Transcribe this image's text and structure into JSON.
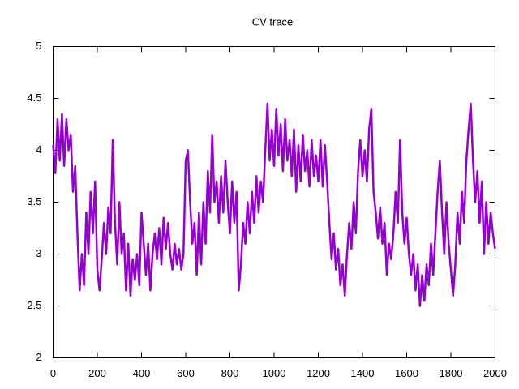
{
  "chart_data": {
    "type": "line",
    "title": "CV trace",
    "x": [
      0,
      10,
      20,
      30,
      40,
      50,
      60,
      70,
      80,
      90,
      100,
      110,
      120,
      130,
      140,
      150,
      160,
      170,
      180,
      190,
      200,
      210,
      220,
      230,
      240,
      250,
      260,
      270,
      280,
      290,
      300,
      310,
      320,
      330,
      340,
      350,
      360,
      370,
      380,
      390,
      400,
      410,
      420,
      430,
      440,
      450,
      460,
      470,
      480,
      490,
      500,
      510,
      520,
      530,
      540,
      550,
      560,
      570,
      580,
      590,
      600,
      610,
      620,
      630,
      640,
      650,
      660,
      670,
      680,
      690,
      700,
      710,
      720,
      730,
      740,
      750,
      760,
      770,
      780,
      790,
      800,
      810,
      820,
      830,
      840,
      850,
      860,
      870,
      880,
      890,
      900,
      910,
      920,
      930,
      940,
      950,
      960,
      970,
      980,
      990,
      1000,
      1010,
      1020,
      1030,
      1040,
      1050,
      1060,
      1070,
      1080,
      1090,
      1100,
      1110,
      1120,
      1130,
      1140,
      1150,
      1160,
      1170,
      1180,
      1190,
      1200,
      1210,
      1220,
      1230,
      1240,
      1250,
      1260,
      1270,
      1280,
      1290,
      1300,
      1310,
      1320,
      1330,
      1340,
      1350,
      1360,
      1370,
      1380,
      1390,
      1400,
      1410,
      1420,
      1430,
      1440,
      1450,
      1460,
      1470,
      1480,
      1490,
      1500,
      1510,
      1520,
      1530,
      1540,
      1550,
      1560,
      1570,
      1580,
      1590,
      1600,
      1610,
      1620,
      1630,
      1640,
      1650,
      1660,
      1670,
      1680,
      1690,
      1700,
      1710,
      1720,
      1730,
      1740,
      1750,
      1760,
      1770,
      1780,
      1790,
      1800,
      1810,
      1820,
      1830,
      1840,
      1850,
      1860,
      1870,
      1880,
      1890,
      1900,
      1910,
      1920,
      1930,
      1940,
      1950,
      1960,
      1970,
      1980,
      1990,
      2000
    ],
    "series": [
      {
        "color": "#9400d3",
        "values": [
          4.05,
          3.78,
          4.3,
          3.9,
          4.35,
          3.85,
          4.3,
          4.0,
          4.15,
          3.6,
          3.85,
          3.2,
          2.65,
          3.0,
          2.7,
          3.4,
          3.0,
          3.6,
          3.2,
          3.7,
          2.85,
          2.65,
          2.95,
          3.3,
          3.0,
          3.45,
          3.2,
          4.1,
          3.3,
          2.9,
          3.5,
          3.0,
          3.2,
          2.65,
          3.1,
          2.6,
          2.95,
          2.75,
          3.0,
          2.7,
          3.4,
          3.1,
          2.8,
          3.1,
          2.65,
          3.0,
          3.2,
          2.95,
          3.25,
          2.9,
          3.35,
          3.05,
          3.3,
          3.0,
          2.85,
          3.1,
          2.9,
          3.05,
          2.85,
          3.0,
          3.9,
          4.0,
          3.5,
          3.1,
          3.3,
          2.8,
          3.4,
          2.9,
          3.5,
          3.1,
          3.8,
          3.4,
          4.15,
          3.5,
          3.7,
          3.3,
          3.75,
          3.4,
          3.9,
          3.5,
          3.2,
          3.7,
          3.3,
          3.6,
          2.65,
          2.9,
          3.3,
          3.1,
          3.5,
          3.2,
          3.6,
          3.3,
          3.75,
          3.4,
          3.7,
          3.5,
          4.0,
          4.45,
          3.9,
          4.2,
          3.85,
          4.4,
          3.95,
          4.25,
          3.8,
          4.3,
          3.9,
          4.1,
          3.75,
          4.2,
          3.6,
          4.05,
          3.7,
          4.15,
          3.8,
          4.0,
          3.65,
          4.1,
          3.75,
          3.95,
          3.7,
          4.1,
          3.65,
          4.05,
          3.7,
          3.3,
          2.95,
          3.2,
          2.85,
          3.05,
          2.7,
          2.9,
          2.6,
          3.0,
          3.3,
          3.05,
          3.5,
          3.2,
          3.8,
          4.1,
          3.75,
          4.0,
          3.7,
          4.2,
          4.4,
          3.6,
          3.4,
          3.15,
          3.45,
          3.1,
          3.3,
          2.8,
          3.1,
          2.95,
          3.2,
          3.6,
          3.3,
          4.1,
          3.4,
          3.1,
          3.35,
          3.0,
          2.8,
          3.0,
          2.65,
          2.9,
          2.5,
          2.8,
          2.55,
          2.9,
          2.7,
          3.1,
          2.8,
          3.2,
          3.6,
          3.9,
          3.4,
          3.0,
          3.5,
          3.1,
          2.85,
          2.6,
          2.9,
          3.4,
          3.1,
          3.6,
          3.3,
          3.9,
          4.2,
          4.45,
          3.9,
          3.5,
          3.8,
          3.3,
          3.7,
          3.0,
          3.5,
          3.1,
          3.4,
          3.2,
          3.05
        ]
      }
    ],
    "xlim": [
      0,
      2000
    ],
    "xticks": [
      0,
      200,
      400,
      600,
      800,
      1000,
      1200,
      1400,
      1600,
      1800,
      2000
    ],
    "ylim": [
      2,
      5
    ],
    "yticks": [
      2,
      2.5,
      3,
      3.5,
      4,
      4.5,
      5
    ],
    "grid": false
  }
}
